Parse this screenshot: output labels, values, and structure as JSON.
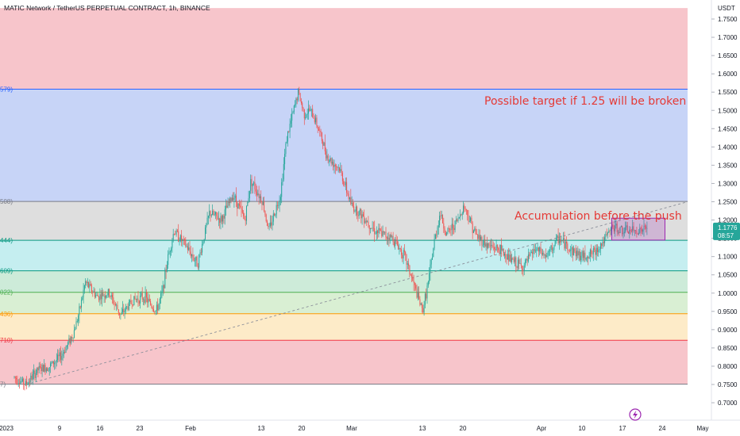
{
  "header": {
    "title": "MATIC Network / TetherUS PERPETUAL CONTRACT, 1h, BINANCE"
  },
  "price_axis": {
    "unit": "USDT",
    "ticks": [
      "1.7500",
      "1.7000",
      "1.6500",
      "1.6000",
      "1.5500",
      "1.5000",
      "1.4500",
      "1.4000",
      "1.3500",
      "1.3000",
      "1.2500",
      "1.2000",
      "1.1500",
      "1.1000",
      "1.0500",
      "1.0000",
      "0.9500",
      "0.9000",
      "0.8500",
      "0.8000",
      "0.7500",
      "0.7000"
    ],
    "last_price": "1.1776",
    "countdown": "08:57",
    "last_price_color": "#26a69a"
  },
  "time_axis": {
    "labels": [
      "2023",
      "9",
      "16",
      "23",
      "Feb",
      "13",
      "20",
      "Mar",
      "13",
      "20",
      "Apr",
      "10",
      "17",
      "24",
      "May"
    ]
  },
  "fib_labels": [
    {
      "text": "579)",
      "color": "#2962ff"
    },
    {
      "text": "508)",
      "color": "#787b86"
    },
    {
      "text": "444)",
      "color": "#089981"
    },
    {
      "text": "609)",
      "color": "#089981"
    },
    {
      "text": "022)",
      "color": "#4caf50"
    },
    {
      "text": "436)",
      "color": "#ff9800"
    },
    {
      "text": "710)",
      "color": "#f23645"
    },
    {
      "text": "7)",
      "color": "#787b86"
    }
  ],
  "annotations": {
    "target_text": "Possible target if 1.25 will be broken",
    "accumulation_text": "Accumulation before the push"
  },
  "icons": {
    "logo": "lightning-bolt-icon"
  },
  "chart_data": {
    "type": "candlestick",
    "symbol": "MATIC Network / TetherUS PERPETUAL CONTRACT",
    "timeframe": "1h",
    "exchange": "BINANCE",
    "ylim": [
      0.68,
      1.78
    ],
    "y_unit": "USDT",
    "fib_levels": [
      {
        "price": 1.5579,
        "color": "#2962ff"
      },
      {
        "price": 1.2508,
        "color": "#787b86"
      },
      {
        "price": 1.1444,
        "color": "#089981"
      },
      {
        "price": 1.0609,
        "color": "#089981"
      },
      {
        "price": 1.0022,
        "color": "#4caf50"
      },
      {
        "price": 0.9436,
        "color": "#ff9800"
      },
      {
        "price": 0.871,
        "color": "#f23645"
      },
      {
        "price": 0.7507,
        "color": "#787b86"
      }
    ],
    "fib_zones": [
      {
        "from": 1.5579,
        "to": 1.78,
        "color": "#f7c5cb"
      },
      {
        "from": 1.2508,
        "to": 1.5579,
        "color": "#c7d4f7"
      },
      {
        "from": 1.1444,
        "to": 1.2508,
        "color": "#dedede"
      },
      {
        "from": 1.0609,
        "to": 1.1444,
        "color": "#c5eef0"
      },
      {
        "from": 1.0022,
        "to": 1.0609,
        "color": "#cdebd9"
      },
      {
        "from": 0.9436,
        "to": 1.0022,
        "color": "#d9efd3"
      },
      {
        "from": 0.871,
        "to": 0.9436,
        "color": "#fdebc8"
      },
      {
        "from": 0.7507,
        "to": 0.871,
        "color": "#f7c5cb"
      }
    ],
    "trendline": {
      "from_price": 0.75,
      "to_price": 1.25,
      "style": "dashed"
    },
    "accumulation_box": {
      "price_low": 1.145,
      "price_high": 1.205
    },
    "price_path": [
      [
        "2023-01-01",
        0.77
      ],
      [
        "2023-01-03",
        0.75
      ],
      [
        "2023-01-05",
        0.79
      ],
      [
        "2023-01-07",
        0.8
      ],
      [
        "2023-01-09",
        0.83
      ],
      [
        "2023-01-11",
        0.89
      ],
      [
        "2023-01-12",
        0.95
      ],
      [
        "2023-01-13",
        1.03
      ],
      [
        "2023-01-15",
        0.99
      ],
      [
        "2023-01-17",
        1.0
      ],
      [
        "2023-01-19",
        0.94
      ],
      [
        "2023-01-21",
        0.98
      ],
      [
        "2023-01-23",
        0.99
      ],
      [
        "2023-01-25",
        0.95
      ],
      [
        "2023-01-26",
        1.0
      ],
      [
        "2023-01-27",
        1.1
      ],
      [
        "2023-01-28",
        1.17
      ],
      [
        "2023-01-30",
        1.13
      ],
      [
        "2023-02-01",
        1.08
      ],
      [
        "2023-02-02",
        1.15
      ],
      [
        "2023-02-03",
        1.22
      ],
      [
        "2023-02-05",
        1.2
      ],
      [
        "2023-02-07",
        1.27
      ],
      [
        "2023-02-09",
        1.2
      ],
      [
        "2023-02-10",
        1.31
      ],
      [
        "2023-02-12",
        1.25
      ],
      [
        "2023-02-13",
        1.17
      ],
      [
        "2023-02-15",
        1.27
      ],
      [
        "2023-02-16",
        1.42
      ],
      [
        "2023-02-18",
        1.55
      ],
      [
        "2023-02-19",
        1.49
      ],
      [
        "2023-02-20",
        1.5
      ],
      [
        "2023-02-21",
        1.47
      ],
      [
        "2023-02-23",
        1.37
      ],
      [
        "2023-02-25",
        1.34
      ],
      [
        "2023-02-27",
        1.24
      ],
      [
        "2023-03-01",
        1.21
      ],
      [
        "2023-03-03",
        1.17
      ],
      [
        "2023-03-06",
        1.15
      ],
      [
        "2023-03-08",
        1.1
      ],
      [
        "2023-03-10",
        1.0
      ],
      [
        "2023-03-11",
        0.95
      ],
      [
        "2023-03-12",
        1.03
      ],
      [
        "2023-03-13",
        1.14
      ],
      [
        "2023-03-14",
        1.22
      ],
      [
        "2023-03-15",
        1.16
      ],
      [
        "2023-03-17",
        1.2
      ],
      [
        "2023-03-18",
        1.24
      ],
      [
        "2023-03-20",
        1.16
      ],
      [
        "2023-03-22",
        1.13
      ],
      [
        "2023-03-24",
        1.12
      ],
      [
        "2023-03-26",
        1.09
      ],
      [
        "2023-03-28",
        1.07
      ],
      [
        "2023-03-30",
        1.12
      ],
      [
        "2023-04-01",
        1.1
      ],
      [
        "2023-04-03",
        1.15
      ],
      [
        "2023-04-05",
        1.12
      ],
      [
        "2023-04-07",
        1.1
      ],
      [
        "2023-04-09",
        1.11
      ],
      [
        "2023-04-11",
        1.15
      ],
      [
        "2023-04-12",
        1.18
      ],
      [
        "2023-04-14",
        1.17
      ],
      [
        "2023-04-16",
        1.17
      ],
      [
        "2023-04-18",
        1.176
      ]
    ]
  }
}
